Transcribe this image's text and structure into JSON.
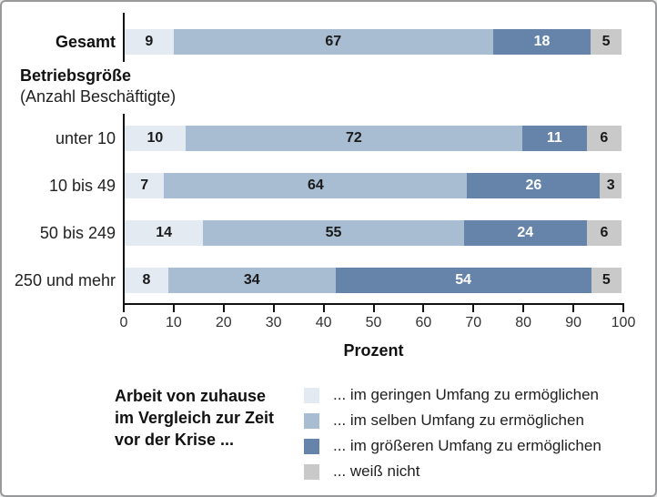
{
  "chart_data": {
    "type": "bar",
    "orientation": "horizontal",
    "stacked": true,
    "unit": "Prozent",
    "xlabel": "Prozent",
    "xlim": [
      0,
      100
    ],
    "x_ticks": [
      0,
      10,
      20,
      30,
      40,
      50,
      60,
      70,
      80,
      90,
      100
    ],
    "grid": false,
    "categories": [
      "Gesamt",
      "unter 10",
      "10 bis 49",
      "50 bis 249",
      "250 und mehr"
    ],
    "group_heading": [
      "Betriebsgröße",
      "(Anzahl Beschäftigte)"
    ],
    "series": [
      {
        "name": "... im geringen Umfang zu ermöglichen",
        "color": "#e3eaf2",
        "label_color": "#1a1a1a",
        "values": [
          9,
          10,
          7,
          14,
          8
        ]
      },
      {
        "name": "... im selben Umfang zu ermöglichen",
        "color": "#a8bdd2",
        "label_color": "#1a1a1a",
        "values": [
          67,
          72,
          64,
          55,
          34
        ]
      },
      {
        "name": "... im größeren Umfang zu ermöglichen",
        "color": "#6684aa",
        "label_color": "#ffffff",
        "values": [
          18,
          11,
          26,
          24,
          54
        ]
      },
      {
        "name": "... weiß nicht",
        "color": "#c9c9c9",
        "label_color": "#1a1a1a",
        "values": [
          5,
          6,
          3,
          6,
          5
        ]
      }
    ],
    "legend_title": "Arbeit von zuhause\nim Vergleich zur Zeit\nvor der Krise ...",
    "legend_position": "bottom"
  }
}
